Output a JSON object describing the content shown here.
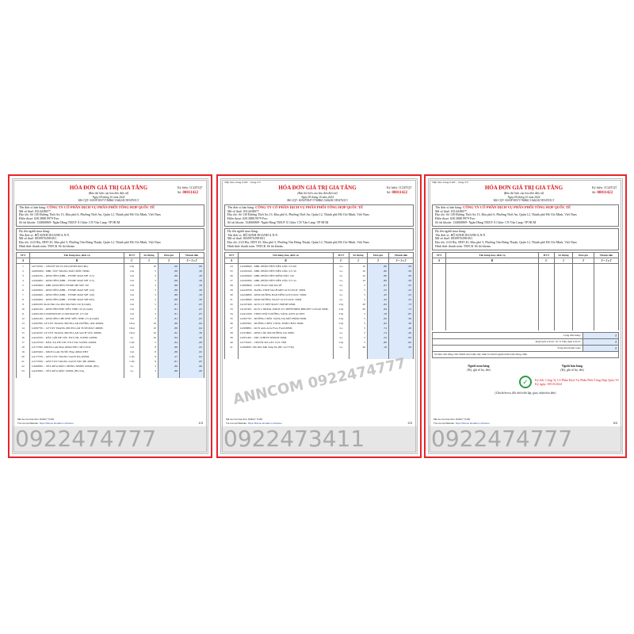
{
  "invoice": {
    "title": "HÓA ĐƠN GIÁ TRỊ GIA TĂNG",
    "subtitle": "(Bản thể hiện của hóa đơn điện tử)",
    "date": "Ngày  09  tháng  10  năm  2024",
    "cqt": "Mã CQT:  00A3F38A717A0B6C1A4624C3E54763C3",
    "symbol_label": "Ký hiệu:",
    "symbol": "1C24TQT",
    "number_label": "Số:",
    "number": "00011422"
  },
  "seller": {
    "name_label": "Tên đơn vị bán hàng:",
    "name": "CÔNG TY CỔ PHẦN DỊCH VỤ PHÂN PHỐI TỔNG HỢP QUỐC TẾ",
    "tax_label": "Mã số thuế:",
    "tax": "0314438077",
    "address_label": "Địa chỉ:",
    "address": "Số 130 Đường Thới An 13, Khu phố 6, Phường Thới An, Quận 12, Thành phố Hồ Chí Minh, Việt Nam",
    "phone_label": "Điện thoại:",
    "phone": "028.3888.9979",
    "fax_label": "Fax:",
    "account_label": "Số tài khoản:",
    "account": "134060869- Ngân Hàng TMCP Á Châu- CN Văn Lang- TP HCM"
  },
  "buyer": {
    "person_label": "Họ tên người mua hàng:",
    "name_label": "Tên đơn vị:",
    "name": "HỘ KINH DOANH A.N.N",
    "tax_label": "Mã số thuế:",
    "tax": "8039976398-001",
    "address_label": "Địa chỉ:",
    "address": "2/23 Bis, DHT 45, Khu phố 5, Phường Tân Hưng Thuận, Quận 12, Thành phố Hồ Chí Minh, Việt Nam",
    "payment_label": "Hình thức thanh toán:",
    "payment": "TM/CK",
    "account_label": "Số tài khoản:"
  },
  "table": {
    "headers": [
      "STT",
      "Tên hàng hóa, dịch vụ",
      "ĐVT",
      "Số lượng",
      "Đơn giá",
      "Thành tiền"
    ],
    "sub": [
      "A",
      "B",
      "C",
      "1",
      "2",
      "3 = 1 x 2"
    ]
  },
  "pages": [
    {
      "continued": "",
      "page_no": "1/3",
      "watermark": "0922474777",
      "rows": [
        [
          "1",
          "G0732501 - CHUỐT MI VLZM (UPSPURCURL)",
          "Cây",
          "10",
          ",00",
          ",00"
        ],
        [
          "2",
          "G0600300 - MBL TẨY TRANG MẮT MÔI 150ML",
          "Cái",
          "5",
          ",88",
          ",58"
        ],
        [
          "3",
          "G2904701 - KEM NỀN (MBL - FITME MAP SPF 115)",
          "Cái",
          "5",
          ",88",
          ",58"
        ],
        [
          "4",
          "G2904801 - KEM NỀN (MBL - FITME MAP SPF 115)",
          "Cái",
          "5",
          ",88",
          ",58"
        ],
        [
          "5",
          "G2904902 - MBL KEM NỀN FITME MP SPF 130",
          "Cái",
          "5",
          ",88",
          ",58"
        ],
        [
          "6",
          "G2905001 - KEM NỀN (MBL - FITME MAP SPF 110)",
          "Cái",
          "5",
          ",88",
          ",58"
        ],
        [
          "7",
          "G2904901 - KEM NỀN (MBL - FITME MAP SPF 120)",
          "Cái",
          "5",
          ",88",
          ",58"
        ],
        [
          "8",
          "G2904601 - KEM NỀN (MBL - FITME MAP SPF 095)",
          "Cái",
          "5",
          ",88",
          ",58"
        ],
        [
          "9",
          "G4061005 Kem Nền Che Phủ Như Mới 120 (LOAR)",
          "Cái",
          "5",
          ",81",
          ",05"
        ],
        [
          "10",
          "G4061201 - KEM NỀN PHỦ SIÊU NHẸ 110 (LOAR)",
          "Cái",
          "5",
          ",81",
          ",05"
        ],
        [
          "11",
          "G4061300 LSUPERSTAY LUMI MATTE 115 ẢN",
          "Cái",
          "5",
          ",81",
          ",05"
        ],
        [
          "12",
          "G4061401 - KEM NỀN CHE PHỦ SIÊU NHẸ 115 (LOAR)",
          "Cái",
          "5",
          ",81",
          ",05"
        ],
        [
          "13",
          "G2997801 LP TẨY TRANG MICELLAR DƯỠNG ẨM 400ML",
          "Chai",
          "10",
          ",88",
          ",64"
        ],
        [
          "14",
          "G2997701 - LP TẨY TRANG MICELLAR TƯƠI MÁT 400ML",
          "Chai",
          "10",
          ",88",
          ",64"
        ],
        [
          "15",
          "G4240101 LP TẨY TRANG MICELLAR SẠCH SÂU 400ML",
          "Chai",
          "10",
          ",82",
          ",58"
        ],
        [
          "16",
          "G4243701 - DẦU GỘI ĐE TÓC EXT OIL SLEEK 440ML",
          "Lọ",
          "10",
          ",84",
          ",30"
        ],
        [
          "17",
          "G4243702 - DẦU XẢ ĐE TÓC EXT OIL SLEEK 440ML",
          "CÁI",
          "5",
          ",84",
          ",08"
        ],
        [
          "18",
          "G2757901 MICELLAR Pink 400ml EBT 100% PCR",
          "Cái",
          "8",
          ",88",
          ",95"
        ],
        [
          "19",
          "G4003401 - MICELLAR NƯỚC Blue 400ml EBT",
          "Cái",
          "8",
          ",88",
          ",95"
        ],
        [
          "20",
          "G4175701 - GEN TẨY TRANG SẠCH DA 400ML",
          "CÁI",
          "8",
          ",27",
          ",64"
        ],
        [
          "21",
          "G2757001 - GEN TẨY TRANG SẠCH SÂU ĐE 400ML",
          "CÁI",
          "8",
          ",81",
          ",85"
        ],
        [
          "22",
          "G4998301 - SỮA RỬA MẶT CHỐNG NHỜN 100ML (BS)",
          "Lọ",
          "5",
          ",88",
          ",90"
        ],
        [
          "23",
          "G4229301 - SỮA RỬA MẶT 100ML (BV-SA)",
          "Lọ",
          "5",
          ",88",
          ",90"
        ]
      ]
    },
    {
      "continued": "Tiếp theo trang trước - trang 2/3",
      "page_no": "2/3",
      "watermark": "0922473411",
      "diag": "ANNCOM 0922474777",
      "rows": [
        [
          "24",
          "G4499900 - MBL PHẤN NỀN SIÊU DẦU LÌ 100",
          "Lọ",
          "10",
          ",80",
          ",58"
        ],
        [
          "25",
          "G4500100 - MBL PHẤN NỀN SIÊU DẦU LÌ 110",
          "Lọ",
          "10",
          ",80",
          ",58"
        ],
        [
          "26",
          "G4500200 - MBL PHẤN NỀN KIỀM DẦU 120",
          "Lọ",
          "10",
          ",80",
          ",58"
        ],
        [
          "27",
          "G4500300 - MBL PHẤN NỀN SIÊU DẦU LÌ 112",
          "Lọ",
          "10",
          ",80",
          ",58"
        ],
        [
          "28",
          "G2890900 - CON NGÀI SÁP DA SẼ",
          "Lọ",
          "5",
          ",81",
          ",55"
        ],
        [
          "29",
          "G4240700 - DẠNG TINH SẠCH MỊN GLYCOLIC 50ML",
          "Lọ",
          "5",
          ",55",
          ",23"
        ],
        [
          "30",
          "G4240800 - KEM DƯỠNG BAN ĐÊM GLYCOLIC 50ML",
          "Lọ",
          "5",
          ",45",
          ",23"
        ],
        [
          "31",
          "G4240900 - KEM DƯỠNG NGÀY GLYCOLIC 50ML",
          "Lọ",
          "5",
          ",45",
          ",23"
        ],
        [
          "32",
          "G4197400 - KCN UV DEF MATT FRESH 50ML",
          "Cây",
          "20",
          ",84",
          ",73"
        ],
        [
          "33",
          "G4197401 - KCN L'OREAL PARIS UV DEFENDER BRIGHT CLEAR 50ML",
          "Cây",
          "20",
          ",84",
          ",73"
        ],
        [
          "34",
          "G4411000 - TINH CHẤT DƯỠNG SÁNG ANTI ACNES",
          "Cây",
          "5",
          ",18",
          ",85"
        ],
        [
          "35",
          "G2997701 - DƯỠNG CHẤT SÁNG DA MỜ THÂM 30ML",
          "Cây",
          "5",
          ",82",
          ",38"
        ],
        [
          "36",
          "G2997601 - DƯỠNG CHẤT TĂNG TINH CHẤT 30ML",
          "Cây",
          "5",
          ",82",
          ",38"
        ],
        [
          "37",
          "G2998801 - KCN Anti-Acne Face Fresh 60ML",
          "Lọ",
          "5",
          ",74",
          ",49"
        ],
        [
          "38",
          "G3318001 - KEM CẤP ẨM DƯỠNG DA 50ML",
          "Lọ",
          "5",
          ",74",
          ",49"
        ],
        [
          "39",
          "G2951401 - ERC WHITE SERUM 30ML",
          "Lọ",
          "5",
          ",54",
          ",09"
        ],
        [
          "40",
          "G2756101 - CHUỐT MI LẤY CỰC TÍM",
          "Cây",
          "5",
          ",80",
          ",00"
        ],
        [
          "41",
          "G2900001 Sữa Rửa Mặt Sáng Da (BC Gel V30)",
          "Lọ",
          "20",
          ",18",
          ",58"
        ]
      ]
    },
    {
      "continued": "Tiếp theo trang trước - trang 3/3",
      "page_no": "3/3",
      "watermark": "0922474777",
      "rows": []
    }
  ],
  "totals": {
    "subtotal_label": "Cộng tiền hàng:",
    "vat_rate_label": "Thuế suất GTGT:",
    "vat_rate": "10 %",
    "vat_label": "Tiền thuế GTGT:",
    "total_label": "Tổng tiền thanh toán:",
    "words_label": "Số tiền viết bằng chữ:",
    "words": "Mười một triệu bảy trăm ba mươi nghìn năm trăm đồng chẵn",
    "currency": "₫"
  },
  "signatures": {
    "buyer": "Người mua hàng",
    "buyer_note": "(Ký, ghi rõ họ, tên)",
    "seller": "Người bán hàng",
    "seller_note": "(Ký, ghi rõ họ, tên)",
    "signed_by_label": "Ký bởi:",
    "signed_by": "Công Ty Cổ Phần Dịch Vụ Phân Phối Tổng Hợp Quốc Tế",
    "signed_date_label": "Ký ngày:",
    "signed_date": "09/10/2024",
    "check_note": "(Cần kiểm tra, đối chiếu khi lập, giao, nhận hóa đơn)"
  },
  "footer": {
    "lookup": "Mã tra cứu hóa đơn: 8ADC7 7NJN",
    "website_label": "Tra cứu tại Website:",
    "website": "https://tracuu.ehoadon.vn/tracuu"
  },
  "colors": {
    "accent": "#d7191f",
    "border": "#e8232a",
    "highlight": "#dbe9fb"
  }
}
